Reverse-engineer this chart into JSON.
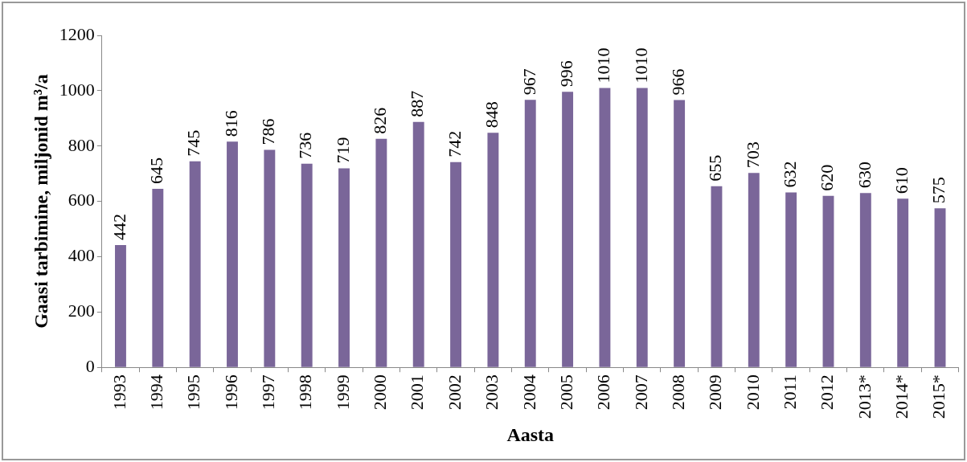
{
  "chart_data": {
    "type": "bar",
    "xlabel": "Aasta",
    "ylabel": "Gaasi tarbimine, miljonid m³/a",
    "categories": [
      "1993",
      "1994",
      "1995",
      "1996",
      "1997",
      "1998",
      "1999",
      "2000",
      "2001",
      "2002",
      "2003",
      "2004",
      "2005",
      "2006",
      "2007",
      "2008",
      "2009",
      "2010",
      "2011",
      "2012",
      "2013*",
      "2014*",
      "2015*"
    ],
    "values": [
      442,
      645,
      745,
      816,
      786,
      736,
      719,
      826,
      887,
      742,
      848,
      967,
      996,
      1010,
      1010,
      966,
      655,
      703,
      632,
      620,
      630,
      610,
      575
    ],
    "color": "#7a6699",
    "ylim": [
      0,
      1200
    ],
    "yticks": [
      0,
      200,
      400,
      600,
      800,
      1000,
      1200
    ],
    "grid": false,
    "legend": false,
    "data_labels": true
  }
}
